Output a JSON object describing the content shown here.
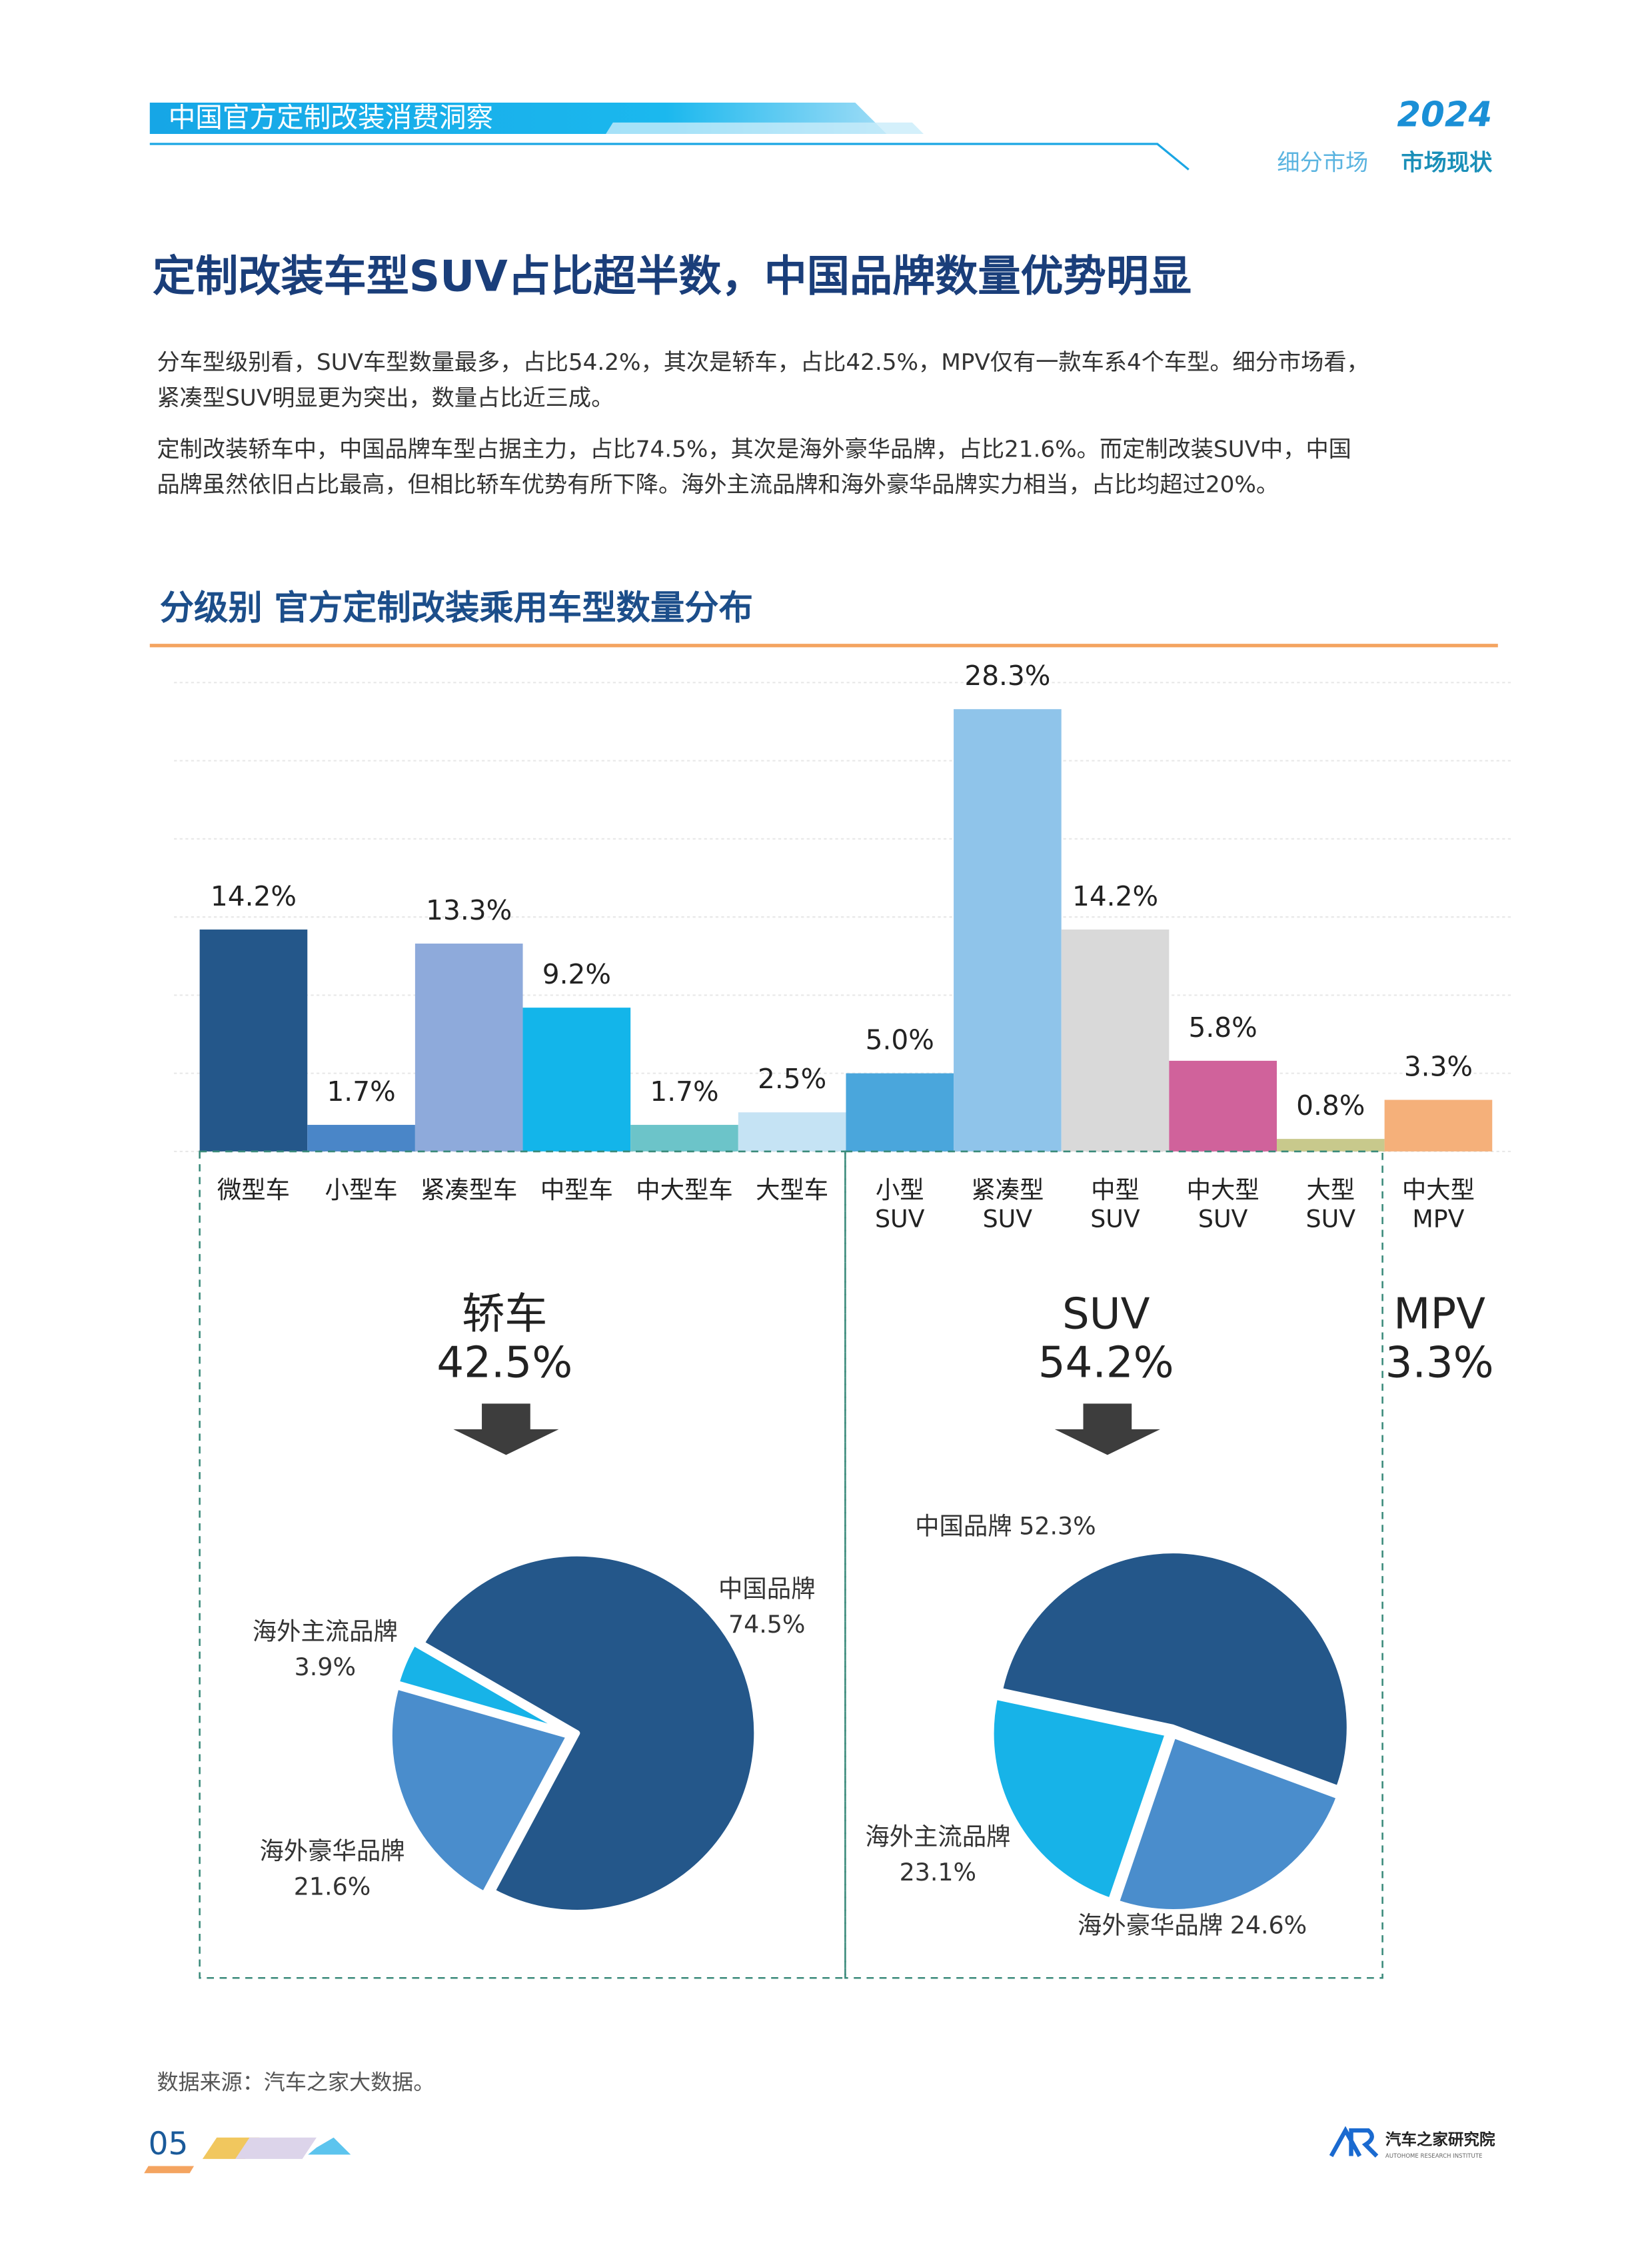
{
  "header": {
    "banner": "中国官方定制改装消费洞察",
    "year": "2024",
    "section": "细分市场",
    "subsection": "市场现状"
  },
  "title": "定制改装车型SUV占比超半数，中国品牌数量优势明显",
  "paragraphs": [
    [
      "分车型级别看，SUV车型数量最多，占比54.2%，其次是轿车，占比42.5%，MPV仅有一款车系4个车型。细分市场看，",
      "紧凑型SUV明显更为突出，数量占比近三成。"
    ],
    [
      "定制改装轿车中，中国品牌车型占据主力，占比74.5%，其次是海外豪华品牌，占比21.6%。而定制改装SUV中，中国",
      "品牌虽然依旧占比最高，但相比轿车优势有所下降。海外主流品牌和海外豪华品牌实力相当，占比均超过20%。"
    ]
  ],
  "chart_title": "分级别 官方定制改装乘用车型数量分布",
  "groups": [
    {
      "name": "轿车",
      "share": "42.5%"
    },
    {
      "name": "SUV",
      "share": "54.2%"
    },
    {
      "name": "MPV",
      "share": "3.3%"
    }
  ],
  "chart_data": [
    {
      "type": "bar",
      "categories": [
        "微型车",
        "小型车",
        "紧凑型车",
        "中型车",
        "中大型车",
        "大型车",
        "小型\nSUV",
        "紧凑型\nSUV",
        "中型\nSUV",
        "中大型\nSUV",
        "大型\nSUV",
        "中大型\nMPV"
      ],
      "values": [
        14.2,
        1.7,
        13.3,
        9.2,
        1.7,
        2.5,
        5.0,
        28.3,
        14.2,
        5.8,
        0.8,
        3.3
      ],
      "value_labels": [
        "14.2%",
        "1.7%",
        "13.3%",
        "9.2%",
        "1.7%",
        "2.5%",
        "5.0%",
        "28.3%",
        "14.2%",
        "5.8%",
        "0.8%",
        "3.3%"
      ],
      "colors": [
        "#24578a",
        "#4a86c8",
        "#8eaadb",
        "#13b5ea",
        "#6cc4c9",
        "#c5e3f4",
        "#4aa6dc",
        "#8fc4ea",
        "#d9d9d9",
        "#d0629b",
        "#c8c98c",
        "#f5b07a"
      ],
      "ylim": [
        0,
        30
      ],
      "yticks": [
        0,
        5,
        10,
        15,
        20,
        25,
        30
      ],
      "grid": true
    },
    {
      "type": "pie",
      "categories": [
        "中国品牌",
        "海外豪华品牌",
        "海外主流品牌"
      ],
      "values": [
        74.5,
        21.6,
        3.9
      ],
      "value_labels": [
        "74.5%",
        "21.6%",
        "3.9%"
      ],
      "colors": [
        "#24578a",
        "#4a8dcc",
        "#17b3e8"
      ]
    },
    {
      "type": "pie",
      "categories": [
        "中国品牌",
        "海外豪华品牌",
        "海外主流品牌"
      ],
      "values": [
        52.3,
        24.6,
        23.1
      ],
      "value_labels": [
        "52.3%",
        "24.6%",
        "23.1%"
      ],
      "colors": [
        "#24578a",
        "#4a8dcc",
        "#17b3e8"
      ]
    }
  ],
  "source": "数据来源：汽车之家大数据。",
  "page_number": "05",
  "logo": {
    "name": "汽车之家研究院",
    "tagline": "AUTOHOME RESEARCH INSTITUTE"
  }
}
